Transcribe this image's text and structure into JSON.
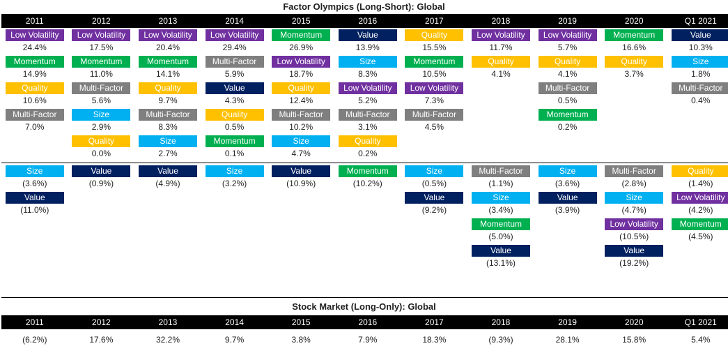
{
  "factor_title": "Factor Olympics (Long-Short): Global",
  "market_title": "Stock Market (Long-Only): Global",
  "years": [
    "2011",
    "2012",
    "2013",
    "2014",
    "2015",
    "2016",
    "2017",
    "2018",
    "2019",
    "2020",
    "Q1 2021"
  ],
  "factor_colors": {
    "Low Volatility": "#7030a0",
    "Momentum": "#00b050",
    "Quality": "#ffc000",
    "Multi-Factor": "#7f7f7f",
    "Size": "#00b0f0",
    "Value": "#002060"
  },
  "chart_data": [
    {
      "type": "table",
      "title": "Factor Olympics (Long-Short): Global",
      "columns": [
        "2011",
        "2012",
        "2013",
        "2014",
        "2015",
        "2016",
        "2017",
        "2018",
        "2019",
        "2020",
        "Q1 2021"
      ],
      "positive": [
        [
          [
            "Low Volatility",
            "24.4%"
          ],
          [
            "Momentum",
            "14.9%"
          ],
          [
            "Quality",
            "10.6%"
          ],
          [
            "Multi-Factor",
            "7.0%"
          ]
        ],
        [
          [
            "Low Volatility",
            "17.5%"
          ],
          [
            "Momentum",
            "11.0%"
          ],
          [
            "Multi-Factor",
            "5.6%"
          ],
          [
            "Size",
            "2.9%"
          ],
          [
            "Quality",
            "0.0%"
          ]
        ],
        [
          [
            "Low Volatility",
            "20.4%"
          ],
          [
            "Momentum",
            "14.1%"
          ],
          [
            "Quality",
            "9.7%"
          ],
          [
            "Multi-Factor",
            "8.3%"
          ],
          [
            "Size",
            "2.7%"
          ]
        ],
        [
          [
            "Low Volatility",
            "29.4%"
          ],
          [
            "Multi-Factor",
            "5.9%"
          ],
          [
            "Value",
            "4.3%"
          ],
          [
            "Quality",
            "0.5%"
          ],
          [
            "Momentum",
            "0.1%"
          ]
        ],
        [
          [
            "Momentum",
            "26.9%"
          ],
          [
            "Low Volatility",
            "18.7%"
          ],
          [
            "Quality",
            "12.4%"
          ],
          [
            "Multi-Factor",
            "10.2%"
          ],
          [
            "Size",
            "4.7%"
          ]
        ],
        [
          [
            "Value",
            "13.9%"
          ],
          [
            "Size",
            "8.3%"
          ],
          [
            "Low Volatility",
            "5.2%"
          ],
          [
            "Multi-Factor",
            "3.1%"
          ],
          [
            "Quality",
            "0.2%"
          ]
        ],
        [
          [
            "Quality",
            "15.5%"
          ],
          [
            "Momentum",
            "10.5%"
          ],
          [
            "Low Volatility",
            "7.3%"
          ],
          [
            "Multi-Factor",
            "4.5%"
          ]
        ],
        [
          [
            "Low Volatility",
            "11.7%"
          ],
          [
            "Quality",
            "4.1%"
          ]
        ],
        [
          [
            "Low Volatility",
            "5.7%"
          ],
          [
            "Quality",
            "4.1%"
          ],
          [
            "Multi-Factor",
            "0.5%"
          ],
          [
            "Momentum",
            "0.2%"
          ]
        ],
        [
          [
            "Momentum",
            "16.6%"
          ],
          [
            "Quality",
            "3.7%"
          ]
        ],
        [
          [
            "Value",
            "10.3%"
          ],
          [
            "Size",
            "1.8%"
          ],
          [
            "Multi-Factor",
            "0.4%"
          ]
        ]
      ],
      "negative": [
        [
          [
            "Size",
            "(3.6%)"
          ],
          [
            "Value",
            "(11.0%)"
          ]
        ],
        [
          [
            "Value",
            "(0.9%)"
          ]
        ],
        [
          [
            "Value",
            "(4.9%)"
          ]
        ],
        [
          [
            "Size",
            "(3.2%)"
          ]
        ],
        [
          [
            "Value",
            "(10.9%)"
          ]
        ],
        [
          [
            "Momentum",
            "(10.2%)"
          ]
        ],
        [
          [
            "Size",
            "(0.5%)"
          ],
          [
            "Value",
            "(9.2%)"
          ]
        ],
        [
          [
            "Multi-Factor",
            "(1.1%)"
          ],
          [
            "Size",
            "(3.4%)"
          ],
          [
            "Momentum",
            "(5.0%)"
          ],
          [
            "Value",
            "(13.1%)"
          ]
        ],
        [
          [
            "Size",
            "(3.6%)"
          ],
          [
            "Value",
            "(3.9%)"
          ]
        ],
        [
          [
            "Multi-Factor",
            "(2.8%)"
          ],
          [
            "Size",
            "(4.7%)"
          ],
          [
            "Low Volatility",
            "(10.5%)"
          ],
          [
            "Value",
            "(19.2%)"
          ]
        ],
        [
          [
            "Quality",
            "(1.4%)"
          ],
          [
            "Low Volatility",
            "(4.2%)"
          ],
          [
            "Momentum",
            "(4.5%)"
          ]
        ]
      ]
    },
    {
      "type": "table",
      "title": "Stock Market (Long-Only): Global",
      "columns": [
        "2011",
        "2012",
        "2013",
        "2014",
        "2015",
        "2016",
        "2017",
        "2018",
        "2019",
        "2020",
        "Q1 2021"
      ],
      "values": [
        "(6.2%)",
        "17.6%",
        "32.2%",
        "9.7%",
        "3.8%",
        "7.9%",
        "18.3%",
        "(9.3%)",
        "28.1%",
        "15.8%",
        "5.4%"
      ]
    }
  ]
}
